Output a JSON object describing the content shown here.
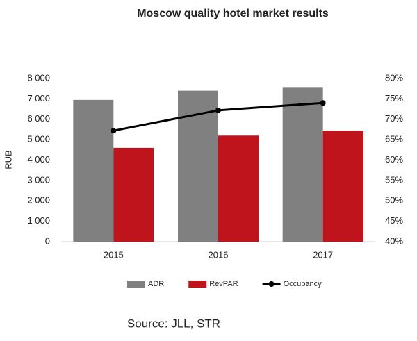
{
  "chart_data": {
    "type": "bar",
    "title": "Moscow quality hotel market results",
    "source": "Source: JLL, STR",
    "y_label": "RUB",
    "categories": [
      "2015",
      "2016",
      "2017"
    ],
    "series": [
      {
        "name": "ADR",
        "type": "bar",
        "color": "#808080",
        "values": [
          6950,
          7400,
          7580
        ]
      },
      {
        "name": "RevPAR",
        "type": "bar",
        "color": "#c0141c",
        "values": [
          4600,
          5200,
          5440
        ]
      },
      {
        "name": "Occupancy",
        "type": "line",
        "axis": "y2",
        "color": "#000000",
        "values": [
          67.2,
          72.2,
          74
        ]
      }
    ],
    "ylim": [
      0,
      8000
    ],
    "yticks": [
      0,
      {
        "value": 1000,
        "label": "1 000"
      },
      {
        "value": 2000,
        "label": "2 000"
      },
      {
        "value": 3000,
        "label": "3 000"
      },
      {
        "value": 4000,
        "label": "4 000"
      },
      {
        "value": 5000,
        "label": "5 000"
      },
      {
        "value": 6000,
        "label": "6 000"
      },
      {
        "value": 7000,
        "label": "7 000"
      },
      {
        "value": 8000,
        "label": "8 000"
      }
    ],
    "y2lim": [
      40,
      80
    ],
    "y2ticks": [
      {
        "value": 40,
        "label": "40%"
      },
      {
        "value": 45,
        "label": "45%"
      },
      {
        "value": 50,
        "label": "50%"
      },
      {
        "value": 55,
        "label": "55%"
      },
      {
        "value": 60,
        "label": "60%"
      },
      {
        "value": 65,
        "label": "65%"
      },
      {
        "value": 70,
        "label": "70%"
      },
      {
        "value": 75,
        "label": "75%"
      },
      {
        "value": 80,
        "label": "80%"
      }
    ],
    "grid": false,
    "legend": "bottom"
  }
}
